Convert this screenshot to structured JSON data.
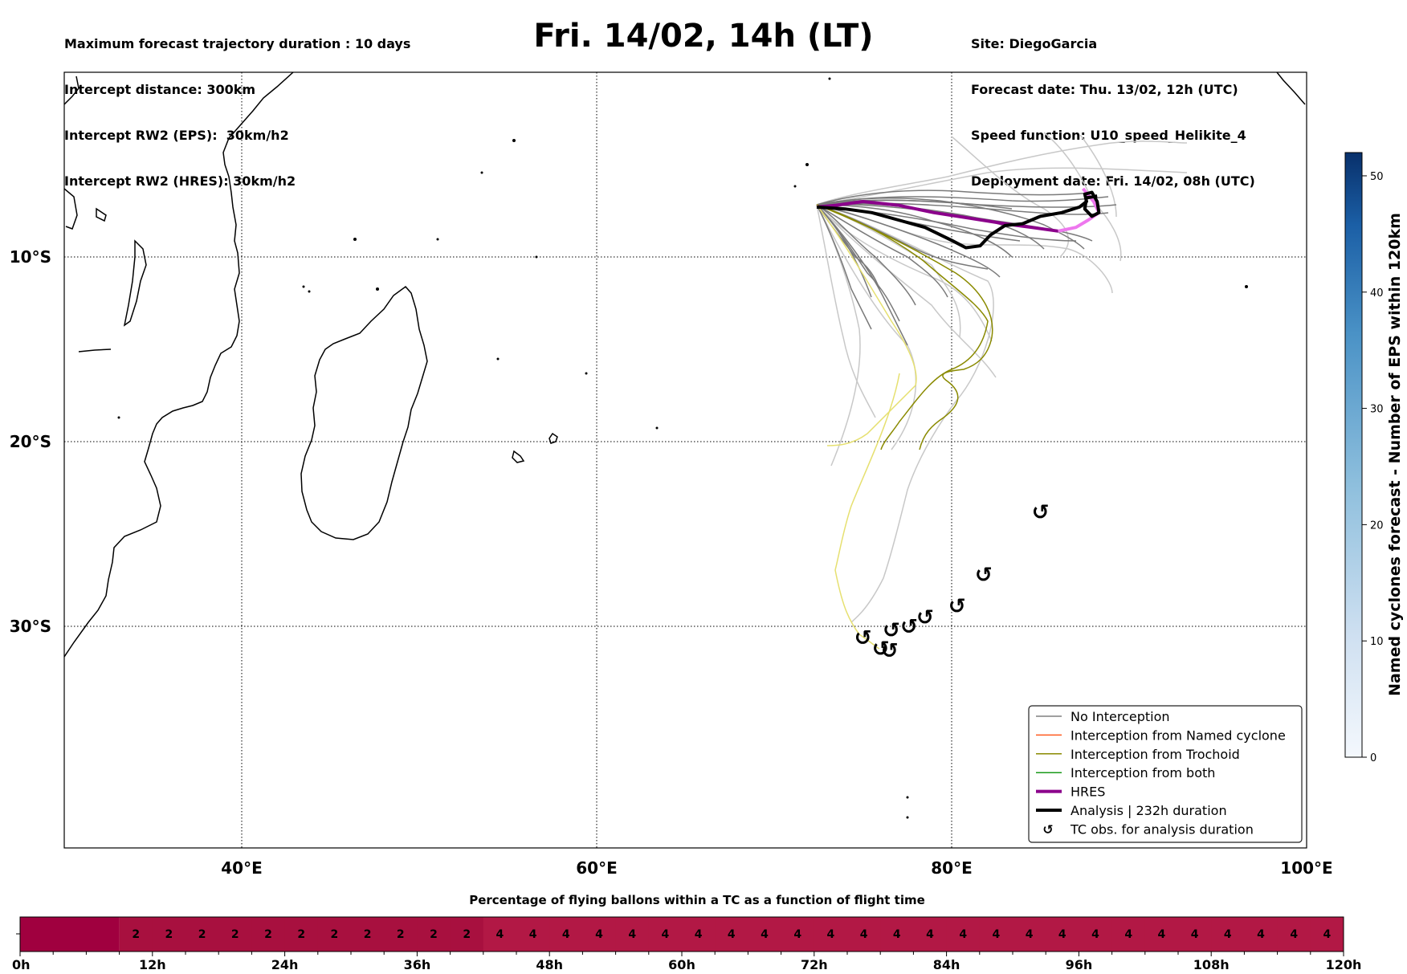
{
  "header": {
    "left_lines": [
      "Maximum forecast trajectory duration : 10 days",
      "Intercept distance: 300km",
      "Intercept RW2 (EPS):  30km/h2",
      "Intercept RW2 (HRES): 30km/h2"
    ],
    "title": "Fri. 14/02, 14h (LT)",
    "right_lines": [
      "Site: DiegoGarcia",
      "Forecast date: Thu. 13/02, 12h (UTC)",
      "Speed function: U10_speed_Helikite_4",
      "Deployment date: Fri. 14/02, 08h (UTC)"
    ]
  },
  "colors": {
    "no_interception": "#808080",
    "named_cyclone": "#ff5a1f",
    "trochoid": "#8a8a00",
    "both": "#1a9a1a",
    "hres": "#8b008b",
    "hres_light": "#ee77ee",
    "analysis": "#000000",
    "colorbar_low": "#f4f8fd",
    "colorbar_high": "#08306b",
    "timebar_dark": "#a0003f",
    "timebar_main": "#b21845"
  },
  "chart_data": [
    {
      "type": "scatter",
      "title": "",
      "xlim": [
        30,
        100
      ],
      "ylim": [
        -42,
        0
      ],
      "x_ticks": [
        {
          "value": 40,
          "label": "40°E"
        },
        {
          "value": 60,
          "label": "60°E"
        },
        {
          "value": 80,
          "label": "80°E"
        },
        {
          "value": 100,
          "label": "100°E"
        }
      ],
      "y_ticks": [
        {
          "value": -10,
          "label": "10°S"
        },
        {
          "value": -20,
          "label": "20°S"
        },
        {
          "value": -30,
          "label": "30°S"
        }
      ],
      "grid": true,
      "legend_position": "bottom-right",
      "legend": [
        {
          "label": "No Interception",
          "style": "thin",
          "color_key": "no_interception"
        },
        {
          "label": "Interception from Named cyclone",
          "style": "thin",
          "color_key": "named_cyclone"
        },
        {
          "label": "Interception from Trochoid",
          "style": "thin",
          "color_key": "trochoid"
        },
        {
          "label": "Interception from both",
          "style": "thin",
          "color_key": "both"
        },
        {
          "label": "HRES",
          "style": "thick",
          "color_key": "hres"
        },
        {
          "label": "Analysis | 232h duration",
          "style": "thick",
          "color_key": "analysis"
        },
        {
          "label": "TC obs. for analysis duration",
          "style": "symbol",
          "color_key": "analysis"
        }
      ],
      "series": [
        {
          "name": "HRES",
          "points": [
            [
              72.4,
              -7.3
            ],
            [
              73.5,
              -7.2
            ],
            [
              75,
              -7.0
            ],
            [
              77,
              -7.2
            ],
            [
              79,
              -7.6
            ],
            [
              81,
              -7.9
            ],
            [
              83,
              -8.2
            ],
            [
              84.5,
              -8.4
            ],
            [
              86,
              -8.6
            ],
            [
              87,
              -8.4
            ],
            [
              87.7,
              -8.0
            ],
            [
              88.3,
              -7.6
            ],
            [
              88,
              -7.0
            ],
            [
              87.4,
              -6.3
            ]
          ]
        },
        {
          "name": "Analysis | 232h duration",
          "points": [
            [
              72.4,
              -7.3
            ],
            [
              74,
              -7.4
            ],
            [
              75.5,
              -7.6
            ],
            [
              77,
              -8.0
            ],
            [
              78.5,
              -8.4
            ],
            [
              80,
              -9.1
            ],
            [
              80.8,
              -9.5
            ],
            [
              81.6,
              -9.4
            ],
            [
              82.2,
              -8.8
            ],
            [
              83,
              -8.3
            ],
            [
              84,
              -8.2
            ],
            [
              85,
              -7.8
            ],
            [
              86.2,
              -7.6
            ],
            [
              87.2,
              -7.3
            ],
            [
              87.6,
              -7.0
            ],
            [
              87.5,
              -6.6
            ],
            [
              87.9,
              -6.5
            ],
            [
              88.2,
              -7.0
            ],
            [
              88.3,
              -7.6
            ],
            [
              87.9,
              -7.8
            ],
            [
              87.5,
              -7.4
            ],
            [
              87.6,
              -6.8
            ],
            [
              88.2,
              -6.7
            ]
          ]
        }
      ],
      "tc_obs_points": [
        [
          85,
          -23.8
        ],
        [
          81.8,
          -27.2
        ],
        [
          80.3,
          -28.9
        ],
        [
          78.5,
          -29.5
        ],
        [
          77.6,
          -30.0
        ],
        [
          76.6,
          -30.2
        ],
        [
          75,
          -30.6
        ],
        [
          76.0,
          -31.2
        ],
        [
          76.5,
          -31.3
        ]
      ]
    },
    {
      "type": "heatmap",
      "colorbar_label": "Named cyclones forecast - Number of EPS within 120km",
      "range": [
        0,
        52
      ],
      "ticks": [
        0,
        10,
        20,
        30,
        40,
        50
      ]
    },
    {
      "type": "heatmap",
      "title": "Percentage of flying ballons within a TC as a function of flight time",
      "xlim": [
        0,
        120
      ],
      "x_ticks": [
        {
          "value": 0,
          "label": "0h"
        },
        {
          "value": 12,
          "label": "12h"
        },
        {
          "value": 24,
          "label": "24h"
        },
        {
          "value": 36,
          "label": "36h"
        },
        {
          "value": 48,
          "label": "48h"
        },
        {
          "value": 60,
          "label": "60h"
        },
        {
          "value": 72,
          "label": "72h"
        },
        {
          "value": 84,
          "label": "84h"
        },
        {
          "value": 96,
          "label": "96h"
        },
        {
          "value": 108,
          "label": "108h"
        },
        {
          "value": 120,
          "label": "120h"
        }
      ],
      "cells": [
        {
          "start": 0,
          "end": 9,
          "value": null
        },
        {
          "start": 9,
          "end": 42,
          "step": 3,
          "value": 2
        },
        {
          "start": 42,
          "end": 120,
          "step": 3,
          "value": 4
        }
      ]
    }
  ]
}
